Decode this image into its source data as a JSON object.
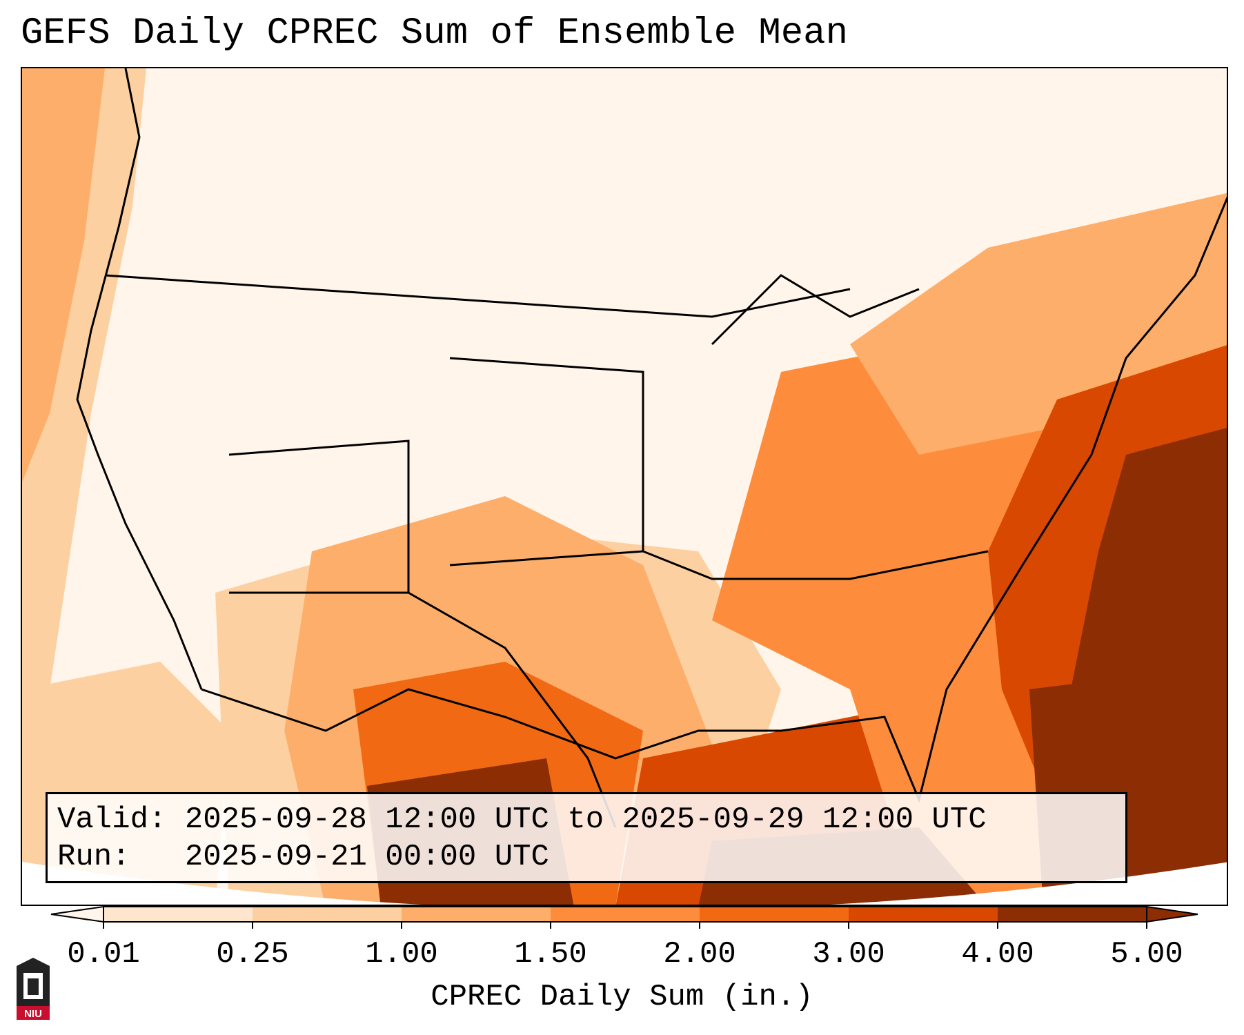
{
  "title": "GEFS Daily CPREC Sum of Ensemble Mean",
  "info": {
    "valid_label": "Valid:",
    "valid_value": "2025-09-28 12:00 UTC to 2025-09-29 12:00 UTC",
    "run_label": "Run:",
    "run_value": "2025-09-21 00:00 UTC"
  },
  "colorbar": {
    "label": "CPREC Daily Sum (in.)",
    "ticks": [
      "0.01",
      "0.25",
      "1.00",
      "1.50",
      "2.00",
      "3.00",
      "4.00",
      "5.00"
    ],
    "colors": [
      "#fff5eb",
      "#fee6ce",
      "#fdd0a2",
      "#fdae6b",
      "#fd8d3c",
      "#f16913",
      "#d94801",
      "#8c2d04"
    ],
    "extend": "both"
  },
  "logo": {
    "text": "NIU"
  },
  "map": {
    "projection": "lambert-conformal",
    "region": "CONUS",
    "field": "CPREC daily sum",
    "heavy_region_color": "#8c2d04"
  }
}
